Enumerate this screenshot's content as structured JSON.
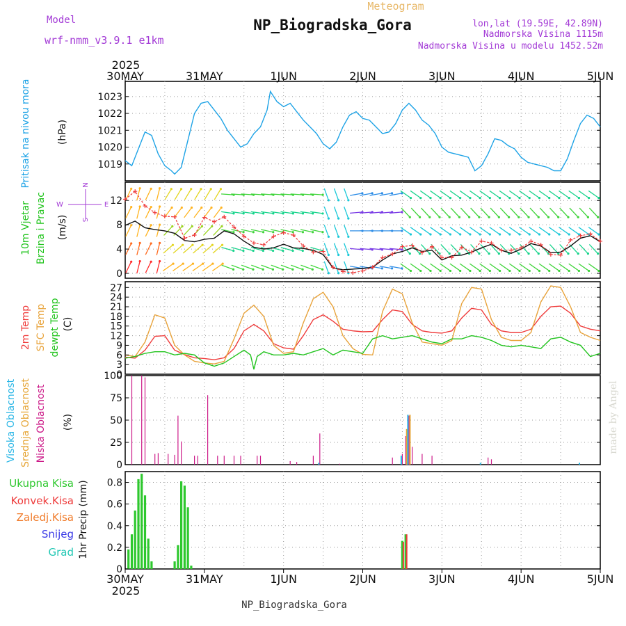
{
  "header": {
    "model_label": "Model",
    "model_value": "wrf-nmm_v3.9.1 e1km",
    "meteogram_label": "Meteogram",
    "station_title": "NP_Biogradska_Gora",
    "lonlat": "lon,lat (19.59E, 42.89N)",
    "elevation": "Nadmorska Visina 1115m",
    "model_elevation": "Nadmorska Visina u modelu 1452.52m",
    "year": "2025",
    "footer_station": "NP_Biogradska_Gora",
    "credit": "made by Angel"
  },
  "colors": {
    "pressure": "#1ea3e6",
    "temp2m": "#ef3b3b",
    "sfc_temp": "#e8a33b",
    "dewpt": "#22c41e",
    "high_cloud": "#29b6e6",
    "mid_cloud": "#e6a536",
    "low_cloud": "#cc1a88",
    "total_precip": "#2ec82e",
    "conv_precip": "#ee3a3a",
    "frozen_precip": "#f07a28",
    "snow": "#3a3ae6",
    "hail": "#22c8b4",
    "wind_speed": "#111111",
    "wind_gust": "#ee3a3a",
    "purple_text": "#a33bd6",
    "grid": "#9a9a9a"
  },
  "chart_data": [
    {
      "type": "line",
      "panel": "pressure",
      "ylabel": [
        "Pritisak na nivou mora",
        "(hPa)"
      ],
      "yticks": [
        1019,
        1020,
        1021,
        1022,
        1023
      ],
      "ylim": [
        1018.0,
        1023.9
      ],
      "xticks": [
        "30MAY",
        "31MAY",
        "1JUN",
        "2JUN",
        "3JUN",
        "4JUN",
        "5JUN"
      ],
      "xlim": [
        0,
        144
      ],
      "grid": true,
      "series": [
        {
          "x": [
            0,
            2,
            4,
            6,
            8,
            10,
            12,
            14,
            15,
            17,
            19,
            21,
            23,
            25,
            27,
            29,
            31,
            33,
            35,
            37,
            39,
            41,
            43,
            44,
            46,
            48,
            50,
            52,
            54,
            56,
            58,
            60,
            62,
            64,
            66,
            68,
            70,
            72,
            74,
            76,
            78,
            80,
            82,
            84,
            86,
            88,
            90,
            92,
            94,
            96,
            98,
            100,
            102,
            104,
            106,
            108,
            110,
            112,
            114,
            116,
            118,
            120,
            122,
            124,
            126,
            128,
            130,
            132,
            134,
            136,
            138,
            140,
            142,
            144
          ],
          "values": [
            1019.2,
            1018.9,
            1019.9,
            1020.9,
            1020.7,
            1019.6,
            1018.9,
            1018.6,
            1018.4,
            1018.8,
            1020.4,
            1022.0,
            1022.6,
            1022.7,
            1022.2,
            1021.7,
            1021.0,
            1020.5,
            1020.0,
            1020.2,
            1020.8,
            1021.2,
            1022.2,
            1023.3,
            1022.7,
            1022.4,
            1022.6,
            1022.1,
            1021.6,
            1021.2,
            1020.8,
            1020.2,
            1019.9,
            1020.3,
            1021.2,
            1021.9,
            1022.1,
            1021.7,
            1021.6,
            1021.2,
            1020.8,
            1020.9,
            1021.4,
            1022.2,
            1022.6,
            1022.2,
            1021.6,
            1021.3,
            1020.8,
            1020.0,
            1019.7,
            1019.6,
            1019.5,
            1019.4,
            1018.6,
            1018.9,
            1019.6,
            1020.5,
            1020.4,
            1020.1,
            1019.9,
            1019.4,
            1019.1,
            1019.0,
            1018.9,
            1018.8,
            1018.6,
            1018.6,
            1019.3,
            1020.4,
            1021.4,
            1021.9,
            1021.7,
            1021.2
          ],
          "color_key": "pressure"
        }
      ]
    },
    {
      "type": "line",
      "panel": "wind",
      "ylabel": [
        "10m Vjetar",
        "Brzina i Pravac",
        "(m/s)"
      ],
      "compass": [
        "N",
        "W",
        "E",
        "S"
      ],
      "yticks": [
        0,
        4,
        8,
        12
      ],
      "ylim": [
        -0.8,
        15.0
      ],
      "xlim": [
        0,
        144
      ],
      "grid": true,
      "wind_barbs": "colored direction arrows for levels 0–14 m/s, coloured red/orange at start through yellow, green, teal, blue, purple near 2JUN",
      "series": [
        {
          "name": "brzina",
          "color_key": "wind_speed",
          "x": [
            0,
            3,
            6,
            9,
            12,
            15,
            18,
            21,
            24,
            27,
            30,
            33,
            36,
            39,
            42,
            45,
            48,
            51,
            54,
            57,
            60,
            63,
            66,
            69,
            72,
            75,
            78,
            81,
            84,
            87,
            90,
            93,
            96,
            99,
            102,
            105,
            108,
            111,
            114,
            117,
            120,
            123,
            126,
            129,
            132,
            135,
            138,
            141,
            144
          ],
          "values": [
            7.9,
            8.6,
            7.5,
            7.2,
            7.0,
            6.6,
            5.4,
            5.2,
            5.6,
            5.8,
            7.0,
            6.5,
            5.3,
            4.3,
            4.0,
            4.2,
            4.8,
            4.2,
            4.1,
            3.8,
            3.1,
            0.9,
            0.6,
            0.7,
            0.8,
            1.0,
            2.2,
            3.2,
            3.6,
            4.2,
            3.6,
            3.8,
            2.2,
            2.9,
            3.0,
            3.5,
            4.2,
            4.8,
            3.8,
            3.3,
            4.0,
            4.9,
            4.5,
            3.4,
            3.5,
            4.5,
            5.8,
            6.2,
            5.2
          ]
        },
        {
          "name": "udar",
          "color_key": "wind_gust",
          "x": [
            0,
            3,
            6,
            9,
            12,
            15,
            18,
            21,
            24,
            27,
            30,
            33,
            36,
            39,
            42,
            45,
            48,
            51,
            54,
            57,
            60,
            63,
            66,
            69,
            72,
            75,
            78,
            81,
            84,
            87,
            90,
            93,
            96,
            99,
            102,
            105,
            108,
            111,
            114,
            117,
            120,
            123,
            126,
            129,
            132,
            135,
            138,
            141,
            144
          ],
          "values": [
            12.2,
            13.5,
            11.1,
            10.0,
            9.4,
            9.3,
            5.8,
            6.3,
            9.2,
            8.5,
            9.3,
            7.6,
            6.1,
            5.0,
            4.7,
            6.1,
            6.7,
            6.3,
            4.5,
            3.5,
            3.6,
            1.0,
            0.3,
            0.1,
            0.4,
            1.0,
            2.6,
            3.2,
            4.4,
            4.6,
            3.4,
            4.4,
            2.6,
            2.6,
            4.3,
            3.5,
            5.3,
            5.0,
            3.8,
            3.8,
            4.2,
            5.3,
            4.7,
            3.1,
            3.0,
            5.5,
            6.2,
            6.5,
            5.3
          ]
        }
      ]
    },
    {
      "type": "line",
      "panel": "temperature",
      "ylabel": [
        "2m Temp",
        "SFC Temp",
        "dewpt Temp",
        "(C)"
      ],
      "yticks": [
        0,
        3,
        6,
        9,
        12,
        15,
        18,
        21,
        24,
        27
      ],
      "ylim": [
        0,
        28.8
      ],
      "xlim": [
        0,
        144
      ],
      "grid": true,
      "series": [
        {
          "name": "2m Temp",
          "color_key": "temp2m",
          "x": [
            0,
            3,
            6,
            9,
            12,
            15,
            18,
            21,
            24,
            27,
            30,
            33,
            36,
            39,
            42,
            45,
            48,
            51,
            54,
            57,
            60,
            63,
            66,
            69,
            72,
            75,
            78,
            81,
            84,
            87,
            90,
            93,
            96,
            99,
            102,
            105,
            108,
            111,
            114,
            117,
            120,
            123,
            126,
            129,
            132,
            135,
            138,
            141,
            144
          ],
          "values": [
            5.3,
            5.0,
            7.5,
            11.8,
            12.0,
            7.5,
            6.1,
            5.1,
            4.9,
            4.5,
            5.1,
            8.0,
            13.5,
            15.5,
            13.5,
            9.5,
            8.2,
            7.8,
            12.0,
            17.0,
            18.5,
            16.5,
            14.0,
            13.5,
            13.2,
            13.3,
            17.0,
            20.0,
            19.5,
            15.5,
            13.5,
            13.0,
            12.8,
            13.5,
            17.5,
            20.5,
            20.0,
            15.5,
            13.5,
            13.0,
            13.0,
            14.0,
            18.0,
            21.0,
            21.2,
            19.0,
            15.0,
            14.0,
            13.5
          ]
        },
        {
          "name": "SFC Temp",
          "color_key": "sfc_temp",
          "x": [
            0,
            3,
            6,
            9,
            12,
            15,
            18,
            21,
            24,
            27,
            30,
            33,
            36,
            39,
            42,
            45,
            48,
            51,
            54,
            57,
            60,
            63,
            66,
            69,
            72,
            75,
            78,
            81,
            84,
            87,
            90,
            93,
            96,
            99,
            102,
            105,
            108,
            111,
            114,
            117,
            120,
            123,
            126,
            129,
            132,
            135,
            138,
            141,
            144
          ],
          "values": [
            6.0,
            5.5,
            10.0,
            18.5,
            17.5,
            9.0,
            6.0,
            4.0,
            3.5,
            3.2,
            4.0,
            11.0,
            19.0,
            21.5,
            18.0,
            9.0,
            6.5,
            7.0,
            16.0,
            23.5,
            25.5,
            21.0,
            12.0,
            8.0,
            6.2,
            6.0,
            19.5,
            26.5,
            25.0,
            16.0,
            10.0,
            9.5,
            9.0,
            10.5,
            22.0,
            27.0,
            26.5,
            17.0,
            11.5,
            10.5,
            10.5,
            13.0,
            22.5,
            27.5,
            27.0,
            21.0,
            13.0,
            11.5,
            10.5
          ]
        },
        {
          "name": "dewpt Temp",
          "color_key": "dewpt",
          "x": [
            0,
            3,
            6,
            9,
            12,
            15,
            18,
            21,
            24,
            27,
            30,
            33,
            36,
            38,
            39,
            40,
            42,
            45,
            48,
            51,
            54,
            57,
            60,
            63,
            66,
            69,
            72,
            75,
            78,
            81,
            84,
            87,
            90,
            93,
            96,
            99,
            102,
            105,
            108,
            111,
            114,
            117,
            120,
            123,
            126,
            129,
            132,
            135,
            138,
            141,
            144
          ],
          "values": [
            5.0,
            5.5,
            6.5,
            7.0,
            7.0,
            6.0,
            6.5,
            6.0,
            3.5,
            2.5,
            3.5,
            5.5,
            7.5,
            6.0,
            1.5,
            5.5,
            7.0,
            6.0,
            6.0,
            6.5,
            6.0,
            7.0,
            8.0,
            6.0,
            7.5,
            7.0,
            6.5,
            11.0,
            12.0,
            11.0,
            11.5,
            12.0,
            11.0,
            10.0,
            9.5,
            11.0,
            11.0,
            12.0,
            11.5,
            10.5,
            9.0,
            8.5,
            9.0,
            8.5,
            8.0,
            11.0,
            11.5,
            10.0,
            9.0,
            5.5,
            6.5
          ]
        }
      ]
    },
    {
      "type": "bar",
      "panel": "clouds",
      "ylabel": [
        "Visoka Oblacnost",
        "Srednja Oblacnost",
        "Niska Oblacnost",
        "(%)"
      ],
      "yticks": [
        0,
        25,
        50,
        75,
        100
      ],
      "ylim": [
        0,
        100
      ],
      "xlim": [
        0,
        144
      ],
      "grid": true,
      "series": [
        {
          "name": "Niska Oblacnost",
          "color_key": "low_cloud",
          "x": [
            2,
            5,
            6,
            9,
            10,
            13,
            15,
            16,
            17,
            21,
            22,
            25,
            28,
            30,
            33,
            35,
            40,
            41,
            50,
            52,
            57,
            59,
            65,
            81,
            84,
            85,
            86,
            87,
            90,
            93,
            110,
            111
          ],
          "values": [
            100,
            100,
            98,
            12,
            13,
            12,
            11,
            55,
            26,
            10,
            10,
            78,
            10,
            10,
            10,
            10,
            10,
            10,
            4,
            3,
            10,
            35,
            1,
            8,
            12,
            32,
            55,
            20,
            12,
            10,
            8,
            6
          ]
        },
        {
          "name": "Srednja Oblacnost",
          "color_key": "mid_cloud",
          "x": [
            85,
            86
          ],
          "values": [
            40,
            56
          ]
        },
        {
          "name": "Visoka Oblacnost",
          "color_key": "high_cloud",
          "x": [
            59,
            84,
            86,
            108,
            138
          ],
          "values": [
            2,
            10,
            56,
            2,
            2
          ]
        }
      ]
    },
    {
      "type": "bar",
      "panel": "precip",
      "ylabel": [
        "1hr Precip (mm)"
      ],
      "legend": [
        "Ukupna Kisa",
        "Konvek.Kisa",
        "Zaledj.Kisa",
        "Snijeg",
        "Grad"
      ],
      "yticks": [
        0,
        0.2,
        0.4,
        0.6,
        0.8
      ],
      "ylim": [
        0,
        0.9
      ],
      "xticks": [
        "30MAY",
        "31MAY",
        "1JUN",
        "2JUN",
        "3JUN",
        "4JUN",
        "5JUN"
      ],
      "year": "2025",
      "xlim": [
        0,
        144
      ],
      "grid": true,
      "series": [
        {
          "name": "Ukupna Kisa",
          "color_key": "total_precip",
          "x": [
            1,
            2,
            3,
            4,
            5,
            6,
            7,
            8,
            15,
            16,
            17,
            18,
            19,
            20,
            84,
            85
          ],
          "values": [
            0.18,
            0.32,
            0.54,
            0.83,
            0.88,
            0.68,
            0.28,
            0.07,
            0.07,
            0.22,
            0.81,
            0.77,
            0.57,
            0.03,
            0.26,
            0.32
          ]
        },
        {
          "name": "Konvek.Kisa",
          "color_key": "conv_precip",
          "x": [
            84,
            85
          ],
          "values": [
            0.25,
            0.32
          ]
        }
      ]
    }
  ]
}
